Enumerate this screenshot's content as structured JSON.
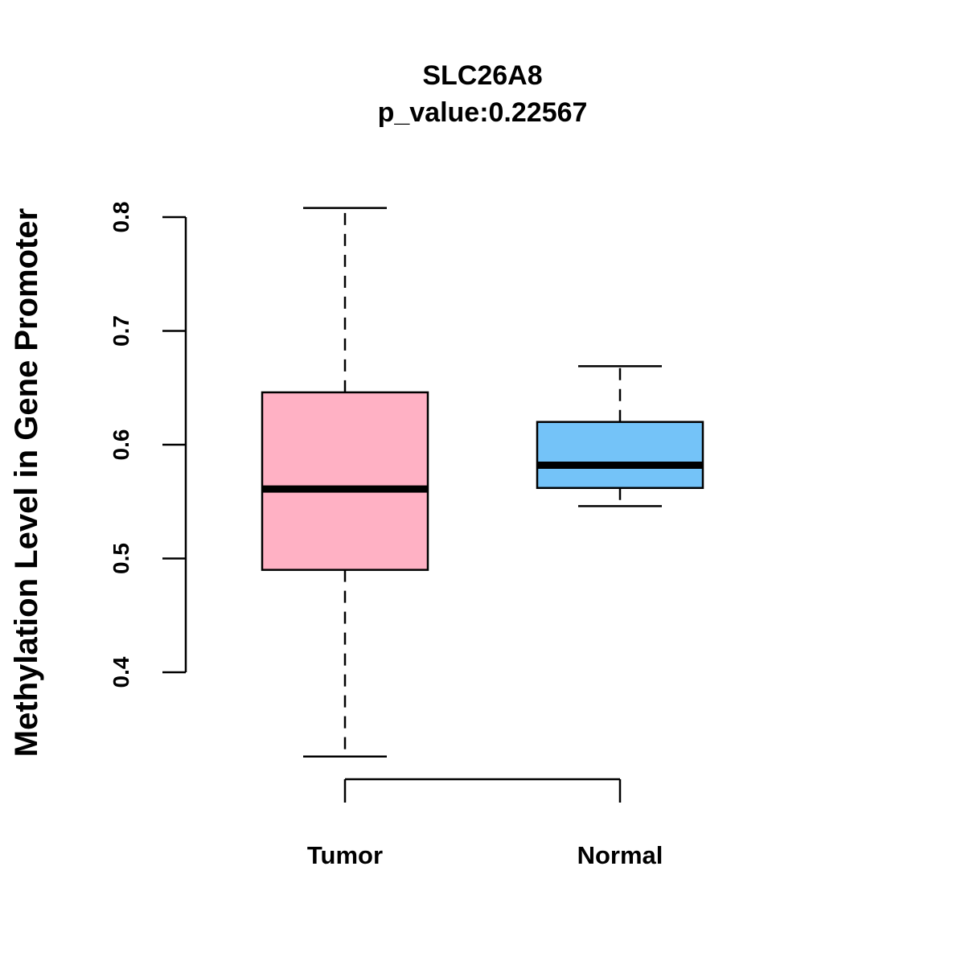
{
  "chart_data": {
    "type": "boxplot",
    "title": "SLC26A8",
    "subtitle": "p_value:0.22567",
    "xlabel": "",
    "ylabel": "Methylation Level in Gene Promoter",
    "ylim": [
      0.3,
      0.85
    ],
    "yticks": [
      0.4,
      0.5,
      0.6,
      0.7,
      0.8
    ],
    "ytick_labels": [
      "0.4",
      "0.5",
      "0.6",
      "0.7",
      "0.8"
    ],
    "categories": [
      "Tumor",
      "Normal"
    ],
    "series": [
      {
        "name": "Tumor",
        "color": "#FFB1C4",
        "whisker_low": 0.326,
        "q1": 0.49,
        "median": 0.561,
        "q3": 0.646,
        "whisker_high": 0.808
      },
      {
        "name": "Normal",
        "color": "#74C3F8",
        "whisker_low": 0.546,
        "q1": 0.562,
        "median": 0.582,
        "q3": 0.62,
        "whisker_high": 0.669
      }
    ],
    "grid": false
  }
}
